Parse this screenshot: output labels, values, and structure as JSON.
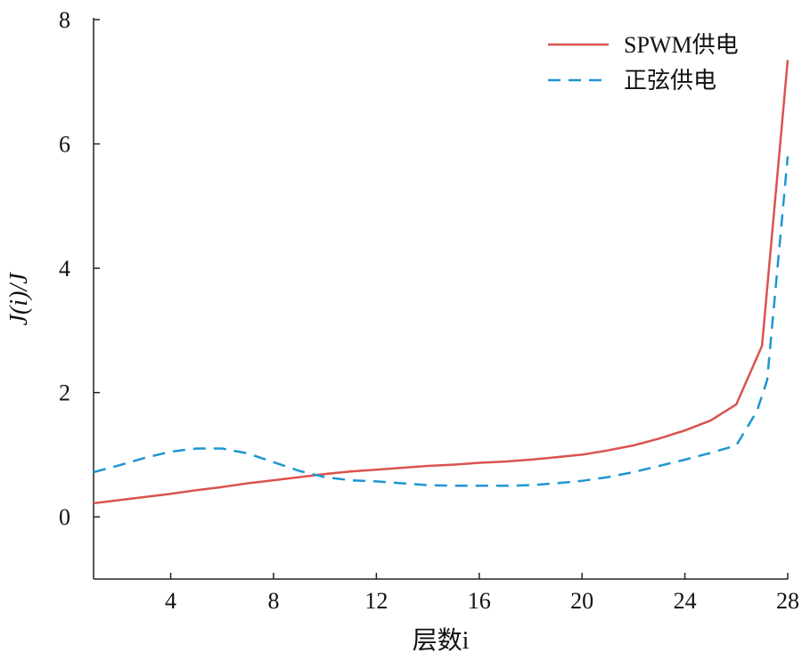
{
  "chart_data": {
    "type": "line",
    "title": "",
    "xlabel": "层数i",
    "ylabel": "J(i)/J",
    "xlim": [
      1,
      28
    ],
    "ylim": [
      -1,
      8
    ],
    "grid": false,
    "legend_position": "top-right",
    "x_ticks": [
      4,
      8,
      12,
      16,
      20,
      24,
      28
    ],
    "y_ticks": [
      0,
      2,
      4,
      6,
      8
    ],
    "series": [
      {
        "name": "SPWM供电",
        "color": "#d9534f",
        "style": "solid",
        "x": [
          1,
          2,
          3,
          4,
          5,
          6,
          7,
          8,
          9,
          10,
          11,
          12,
          13,
          14,
          15,
          16,
          17,
          18,
          19,
          20,
          21,
          22,
          23,
          24,
          25,
          26,
          27,
          28
        ],
        "y": [
          0.22,
          0.27,
          0.32,
          0.37,
          0.43,
          0.48,
          0.54,
          0.59,
          0.64,
          0.69,
          0.73,
          0.76,
          0.79,
          0.82,
          0.84,
          0.87,
          0.89,
          0.92,
          0.96,
          1.0,
          1.07,
          1.15,
          1.26,
          1.39,
          1.55,
          1.81,
          2.75,
          7.35
        ]
      },
      {
        "name": "正弦供电",
        "color": "#1e96d2",
        "style": "dashed",
        "x": [
          1,
          2,
          3,
          4,
          5,
          6,
          7,
          8,
          9,
          10,
          11,
          12,
          13,
          14,
          15,
          16,
          17,
          18,
          19,
          20,
          21,
          22,
          23,
          24,
          25,
          26,
          26.8,
          27.2,
          28
        ],
        "y": [
          0.72,
          0.83,
          0.95,
          1.05,
          1.1,
          1.1,
          1.02,
          0.88,
          0.74,
          0.64,
          0.59,
          0.57,
          0.54,
          0.51,
          0.5,
          0.5,
          0.5,
          0.51,
          0.54,
          0.58,
          0.64,
          0.72,
          0.82,
          0.92,
          1.03,
          1.15,
          1.7,
          2.2,
          5.8
        ]
      }
    ]
  }
}
